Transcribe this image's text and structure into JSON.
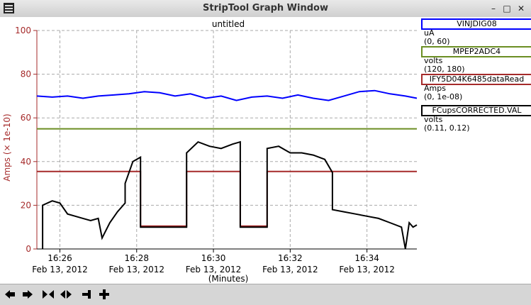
{
  "window": {
    "title": "StripTool Graph Window",
    "min_glyph": "–",
    "max_glyph": "□",
    "close_glyph": "✕"
  },
  "graph": {
    "title": "untitled",
    "ylabel": "Amps (× 1e-10)",
    "xlabel": "(Minutes)",
    "axis_color": "#a52a2a"
  },
  "legend": [
    {
      "name": "VINJDIG08",
      "unit": "uA",
      "range": "(0, 60)",
      "color": "#0000ff"
    },
    {
      "name": "MPEP2ADC4",
      "unit": "volts",
      "range": "(120, 180)",
      "color": "#6b8e23"
    },
    {
      "name": "IFY5D04K6485dataRead",
      "unit": "Amps",
      "range": "(0, 1e-08)",
      "color": "#a52a2a"
    },
    {
      "name": "FCupsCORRECTED.VAL",
      "unit": "volts",
      "range": "(0.11, 0.12)",
      "color": "#000000"
    }
  ],
  "chart_data": {
    "type": "line",
    "title": "untitled",
    "ylabel": "Amps (× 1e-10)",
    "xlabel": "(Minutes)",
    "ylim": [
      0,
      100
    ],
    "xlim": [
      25.4,
      35.3
    ],
    "x_unit": "minutes after 16:00, Feb 13, 2012",
    "grid": true,
    "yticks": [
      "0",
      "20",
      "40",
      "60",
      "80",
      "100"
    ],
    "xticks": [
      {
        "x": 26,
        "time": "16:26",
        "date": "Feb 13, 2012"
      },
      {
        "x": 28,
        "time": "16:28",
        "date": "Feb 13, 2012"
      },
      {
        "x": 30,
        "time": "16:30",
        "date": "Feb 13, 2012"
      },
      {
        "x": 32,
        "time": "16:32",
        "date": "Feb 13, 2012"
      },
      {
        "x": 34,
        "time": "16:34",
        "date": "Feb 13, 2012"
      }
    ],
    "series": [
      {
        "name": "VINJDIG08",
        "color": "#0000ff",
        "x": [
          25.4,
          25.8,
          26.2,
          26.6,
          27.0,
          27.4,
          27.8,
          28.2,
          28.6,
          29.0,
          29.4,
          29.8,
          30.2,
          30.6,
          31.0,
          31.4,
          31.8,
          32.2,
          32.6,
          33.0,
          33.4,
          33.8,
          34.2,
          34.6,
          35.0,
          35.3
        ],
        "y": [
          70,
          69.5,
          70,
          69,
          70,
          70.5,
          71,
          72,
          71.5,
          70,
          71,
          69,
          70,
          68,
          69.5,
          70,
          69,
          70.5,
          69,
          68,
          70,
          72,
          72.5,
          71,
          70,
          69
        ]
      },
      {
        "name": "MPEP2ADC4",
        "color": "#6b8e23",
        "x": [
          25.4,
          35.3
        ],
        "y": [
          55,
          55
        ]
      },
      {
        "name": "IFY5D04K6485dataRead",
        "color": "#a52a2a",
        "x": [
          25.4,
          28.1,
          28.1,
          29.3,
          29.3,
          30.7,
          30.7,
          31.4,
          31.4,
          35.3
        ],
        "y": [
          35.5,
          35.5,
          10.5,
          10.5,
          35.5,
          35.5,
          10.5,
          10.5,
          35.5,
          35.5
        ]
      },
      {
        "name": "FCupsCORRECTED.VAL",
        "color": "#000000",
        "x": [
          25.55,
          25.55,
          25.8,
          26.0,
          26.2,
          26.4,
          26.6,
          26.8,
          27.0,
          27.1,
          27.3,
          27.5,
          27.7,
          27.7,
          27.9,
          28.1,
          28.1,
          29.3,
          29.3,
          29.6,
          29.9,
          30.2,
          30.5,
          30.7,
          30.7,
          31.4,
          31.4,
          31.7,
          32.0,
          32.3,
          32.6,
          32.9,
          33.1,
          33.1,
          33.4,
          33.7,
          34.0,
          34.3,
          34.6,
          34.9,
          35.0,
          35.1,
          35.2,
          35.3
        ],
        "y": [
          0,
          20,
          22,
          21,
          16,
          15,
          14,
          13,
          14,
          5,
          12,
          17,
          21,
          30,
          40,
          42,
          10,
          10,
          44,
          49,
          47,
          46,
          48,
          49,
          10,
          10,
          46,
          47,
          44,
          44,
          43,
          41,
          35,
          18,
          17,
          16,
          15,
          14,
          12,
          10,
          0,
          12,
          10,
          11
        ]
      }
    ]
  }
}
